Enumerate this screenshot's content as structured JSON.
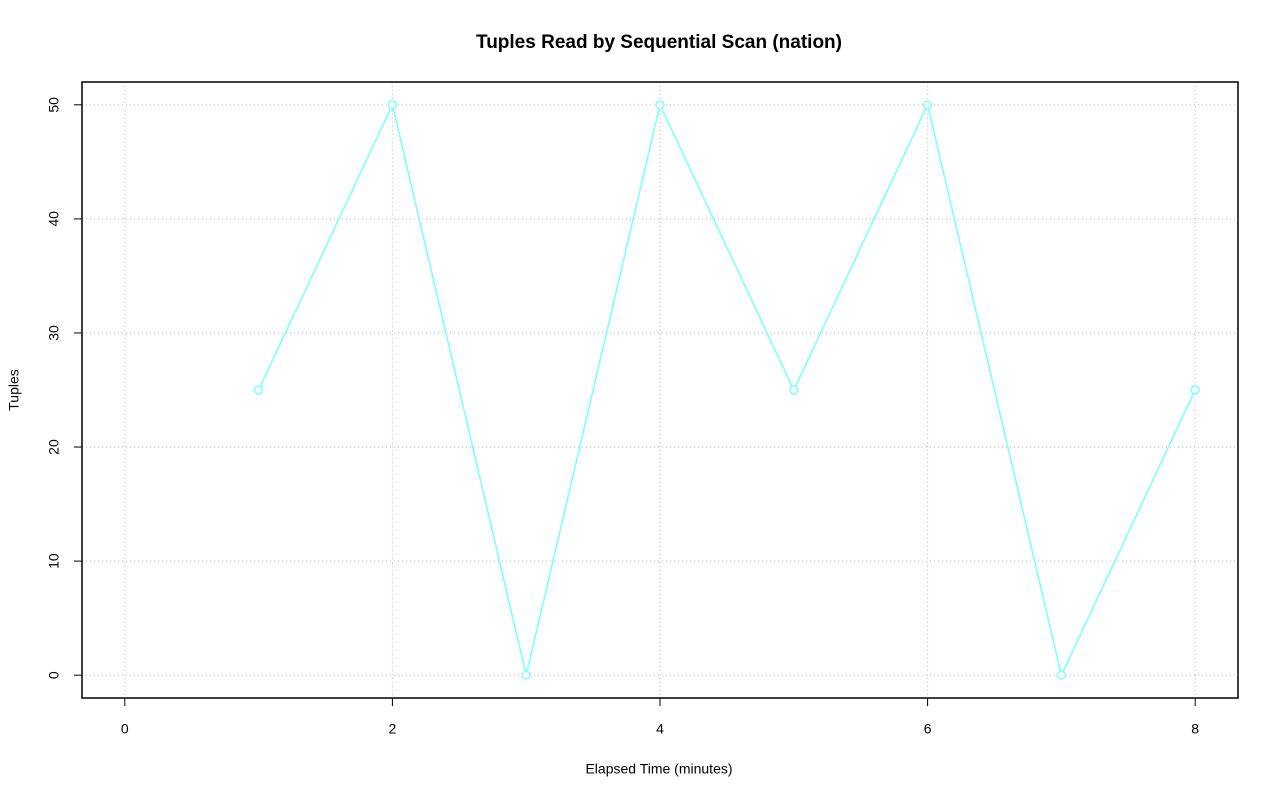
{
  "chart_data": {
    "type": "line",
    "title": "Tuples Read by Sequential Scan (nation)",
    "x_label": "Elapsed Time (minutes)",
    "y_label": "Tuples",
    "x": [
      1,
      2,
      3,
      4,
      5,
      6,
      7,
      8
    ],
    "series": [
      {
        "color": "#80ffff",
        "values": [
          25,
          50,
          0,
          50,
          25,
          50,
          0,
          25
        ]
      }
    ],
    "xlim": [
      -0.32,
      8.32
    ],
    "xticks": [
      0,
      2,
      4,
      6,
      8
    ],
    "ylim": [
      -2,
      52
    ],
    "yticks": [
      0,
      10,
      20,
      30,
      40,
      50
    ],
    "grid": true
  }
}
